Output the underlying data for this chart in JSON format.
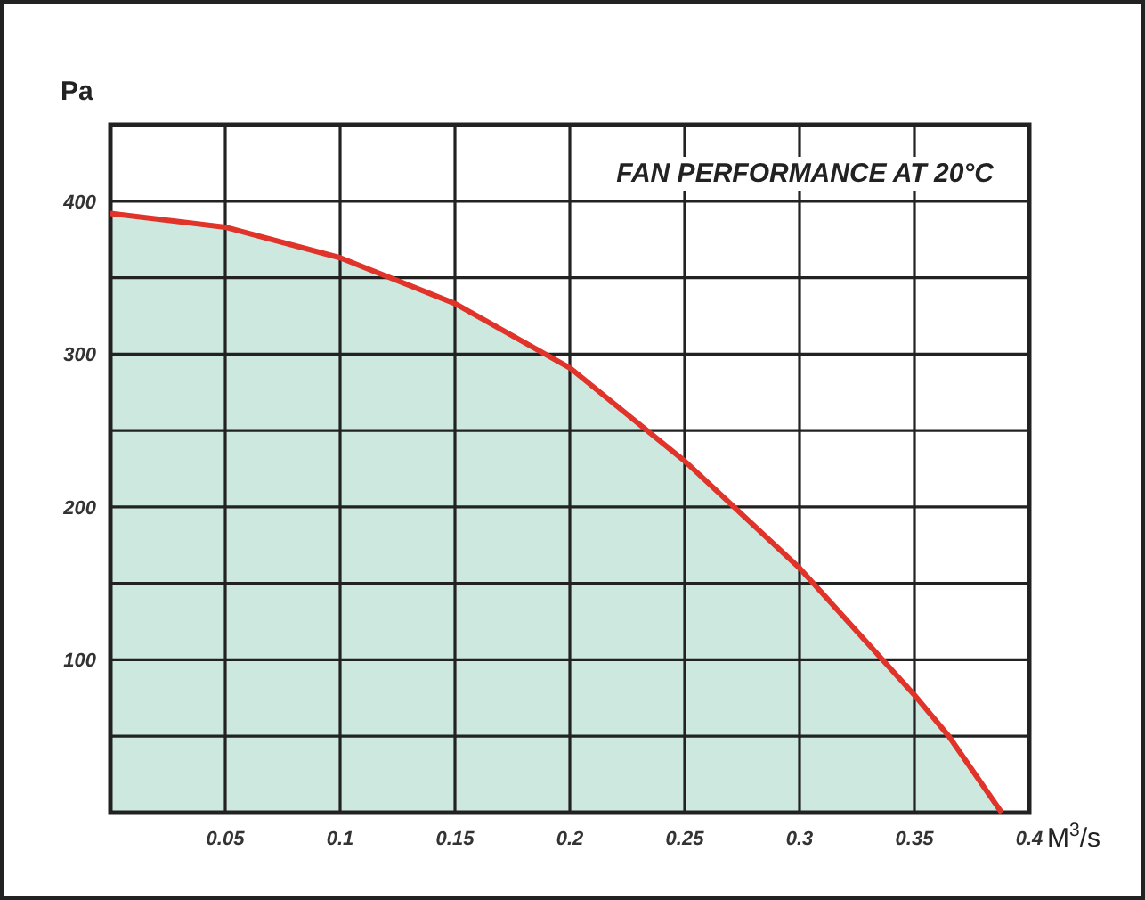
{
  "chart_data": {
    "type": "area",
    "title": "FAN PERFORMANCE AT 20°C",
    "xlabel": "M$^{3}$/s",
    "ylabel": "Pa",
    "x": [
      0,
      0.05,
      0.1,
      0.15,
      0.2,
      0.25,
      0.3,
      0.35,
      0.365,
      0.388
    ],
    "series": [
      {
        "color": "#cde8df",
        "values": [
          392,
          383,
          363,
          333,
          291,
          230,
          160,
          77,
          50,
          0
        ]
      }
    ],
    "xlim": [
      0,
      0.4
    ],
    "ylim": [
      0,
      450
    ],
    "xticks": [
      0.05,
      0.1,
      0.15,
      0.2,
      0.25,
      0.3,
      0.35,
      0.4
    ],
    "yticks": [
      {
        "value": 0,
        "label": null
      },
      {
        "value": 50,
        "label": null
      },
      100,
      {
        "value": 150,
        "label": null
      },
      200,
      {
        "value": 250,
        "label": null
      },
      300,
      {
        "value": 350,
        "label": null
      },
      400,
      {
        "value": 450,
        "label": null
      }
    ],
    "grid": true,
    "line_style": "solid"
  }
}
